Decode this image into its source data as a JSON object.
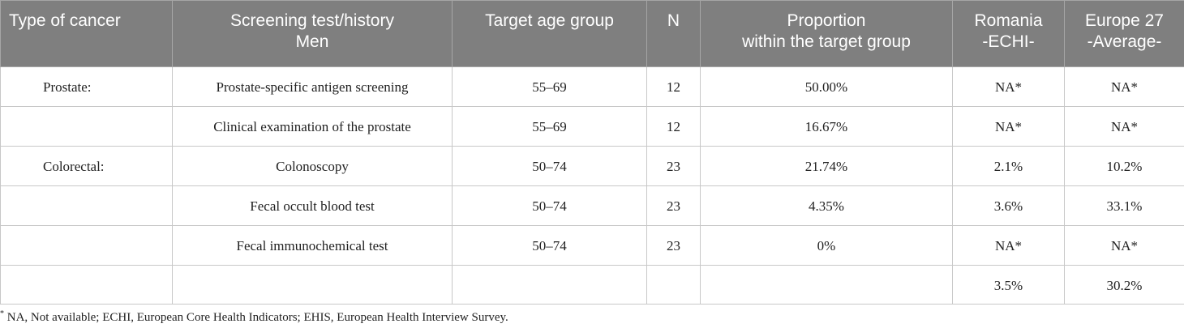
{
  "header": {
    "type_of_cancer": "Type of cancer",
    "screening_line1": "Screening test/history",
    "screening_line2": "Men",
    "target_age_group": "Target age group",
    "n": "N",
    "proportion_line1": "Proportion",
    "proportion_line2": "within the target group",
    "romania_line1": "Romania",
    "romania_line2": "-ECHI-",
    "europe_line1": "Europe 27",
    "europe_line2": "-Average-"
  },
  "rows": [
    {
      "type": "Prostate:",
      "test": "Prostate-specific antigen screening",
      "age": "55–69",
      "n": "12",
      "proportion": "50.00%",
      "romania": "NA*",
      "europe": "NA*"
    },
    {
      "type": "",
      "test": "Clinical examination of the prostate",
      "age": "55–69",
      "n": "12",
      "proportion": "16.67%",
      "romania": "NA*",
      "europe": "NA*"
    },
    {
      "type": "Colorectal:",
      "test": "Colonoscopy",
      "age": "50–74",
      "n": "23",
      "proportion": "21.74%",
      "romania": "2.1%",
      "europe": "10.2%"
    },
    {
      "type": "",
      "test": "Fecal occult blood test",
      "age": "50–74",
      "n": "23",
      "proportion": "4.35%",
      "romania": "3.6%",
      "europe": "33.1%"
    },
    {
      "type": "",
      "test": "Fecal immunochemical test",
      "age": "50–74",
      "n": "23",
      "proportion": "0%",
      "romania": "NA*",
      "europe": "NA*"
    },
    {
      "type": "",
      "test": "",
      "age": "",
      "n": "",
      "proportion": "",
      "romania": "3.5%",
      "europe": "30.2%"
    }
  ],
  "footnote": {
    "marker": "*",
    "text": " NA, Not available; ECHI, European Core Health Indicators; EHIS, European Health Interview Survey."
  }
}
